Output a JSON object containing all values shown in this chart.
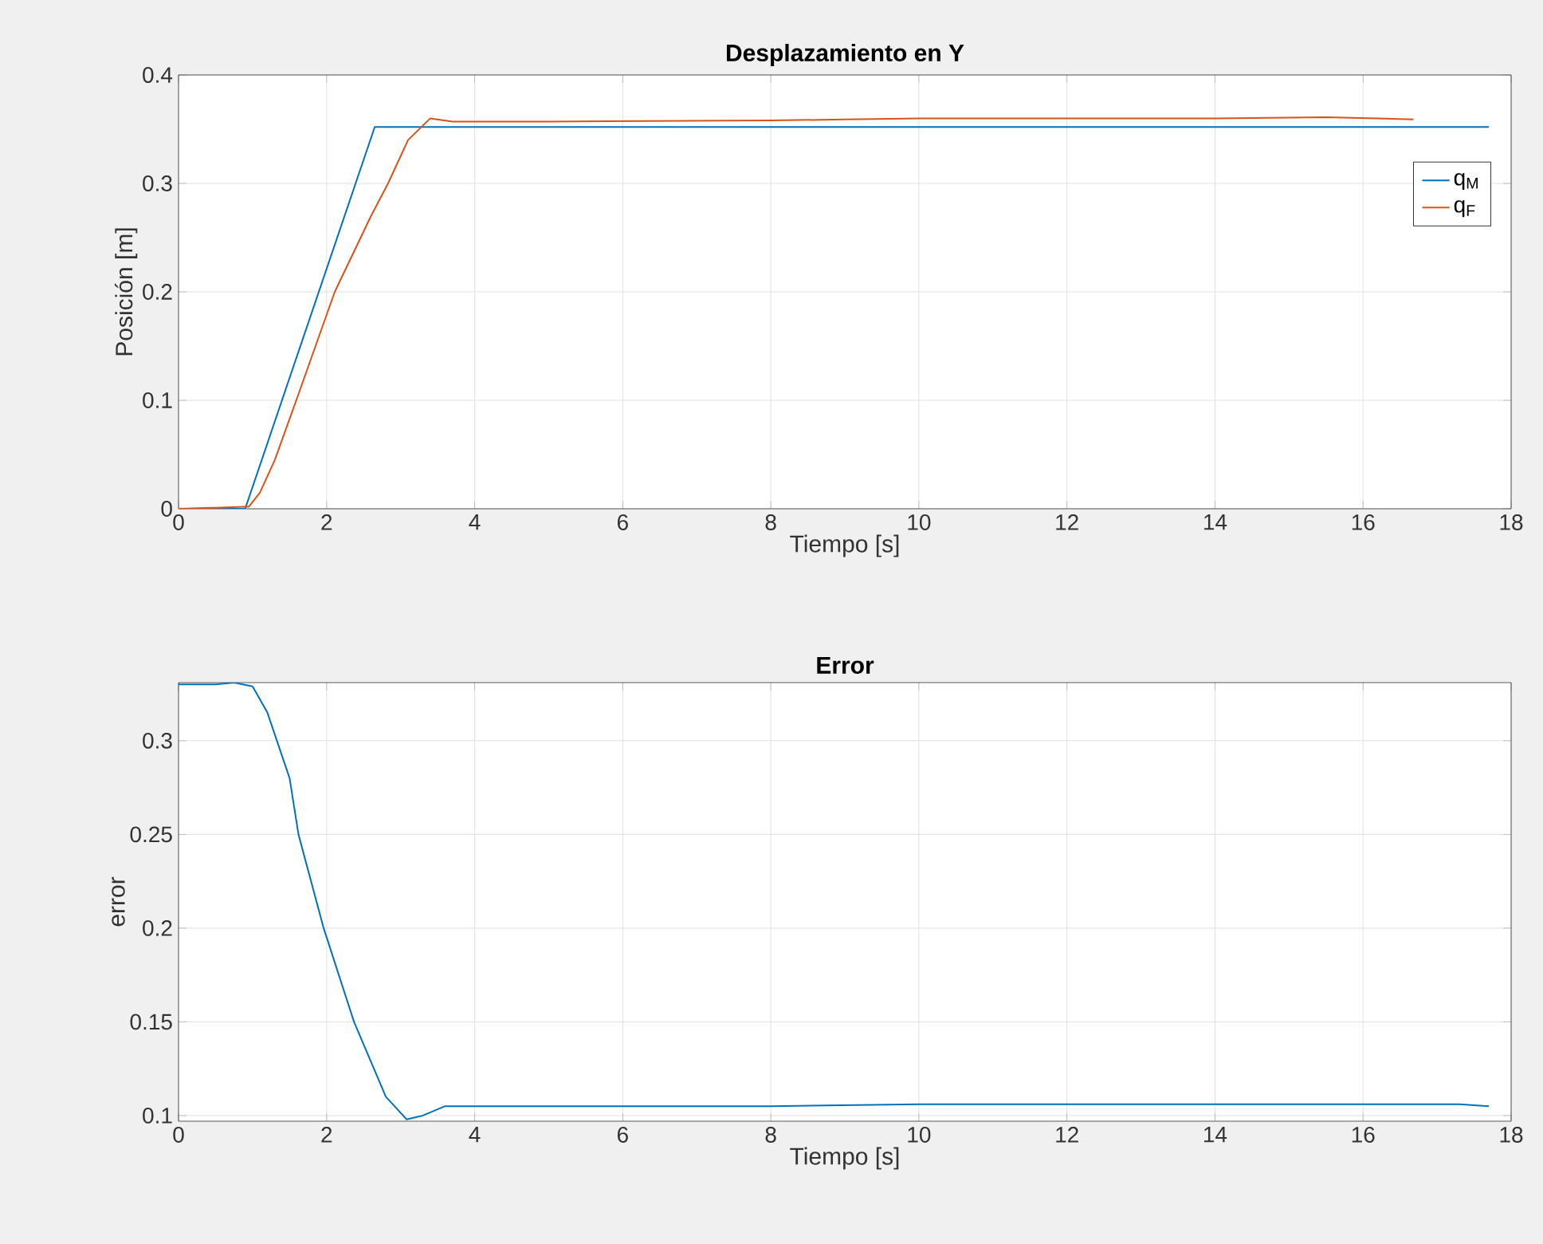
{
  "chart_data": [
    {
      "type": "line",
      "title": "Desplazamiento en Y",
      "xlabel": "Tiempo [s]",
      "ylabel": "Posición [m]",
      "xlim": [
        0,
        18
      ],
      "ylim": [
        0,
        0.4
      ],
      "xticks": [
        0,
        2,
        4,
        6,
        8,
        10,
        12,
        14,
        16,
        18
      ],
      "yticks": [
        0,
        0.1,
        0.2,
        0.3,
        0.4
      ],
      "grid": true,
      "legend": "top right",
      "series": [
        {
          "name": "q$_{M}$",
          "color": "#0072bd",
          "x": [
            0,
            0.9,
            2.65,
            17.7
          ],
          "values": [
            0,
            0,
            0.352,
            0.352
          ]
        },
        {
          "name": "q$_{F}$",
          "color": "#d95319",
          "x": [
            0,
            0.5,
            0.8,
            0.95,
            1.1,
            1.3,
            1.59,
            2.11,
            2.6,
            2.83,
            3.1,
            3.4,
            3.7,
            5,
            8,
            9,
            10,
            14,
            15.5,
            16.2,
            16.68
          ],
          "values": [
            0,
            0.001,
            null,
            0.002,
            0.015,
            0.045,
            0.1,
            0.2,
            0.27,
            0.3,
            0.34,
            0.36,
            0.357,
            0.357,
            0.358,
            0.359,
            0.36,
            0.36,
            0.361,
            0.36,
            0.359
          ]
        }
      ]
    },
    {
      "type": "line",
      "title": "Error",
      "xlabel": "Tiempo [s]",
      "ylabel": "error",
      "xlim": [
        0,
        18
      ],
      "ylim": [
        0.097,
        0.331
      ],
      "xticks": [
        0,
        2,
        4,
        6,
        8,
        10,
        12,
        14,
        16,
        18
      ],
      "yticks": [
        0.1,
        0.15,
        0.2,
        0.25,
        0.3
      ],
      "grid": true,
      "series": [
        {
          "color": "#0072bd",
          "x": [
            0,
            0.5,
            0.75,
            1.0,
            1.2,
            1.5,
            1.62,
            1.96,
            2.37,
            2.8,
            3.08,
            3.3,
            3.6,
            4,
            8,
            10,
            16,
            17.3,
            17.7
          ],
          "values": [
            0.33,
            0.33,
            0.331,
            0.329,
            0.315,
            0.28,
            0.25,
            0.2,
            0.15,
            0.11,
            0.098,
            0.1,
            0.105,
            0.105,
            0.105,
            0.106,
            0.106,
            0.106,
            0.105
          ]
        }
      ]
    }
  ]
}
